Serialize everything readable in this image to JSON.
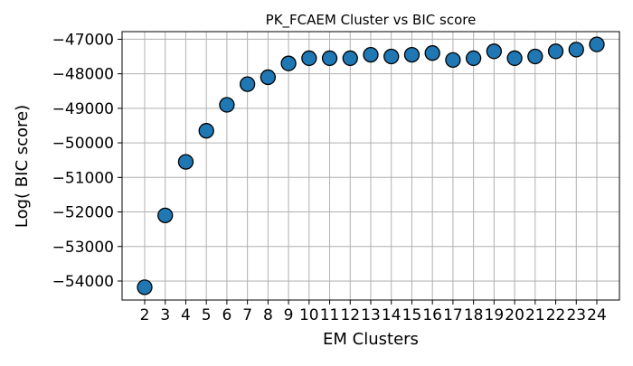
{
  "chart_data": {
    "type": "scatter",
    "title": "PK_FCAEM Cluster vs BIC score",
    "xlabel": "EM Clusters",
    "ylabel": "Log( BIC score)",
    "x": [
      2,
      3,
      4,
      5,
      6,
      7,
      8,
      9,
      10,
      11,
      12,
      13,
      14,
      15,
      16,
      17,
      18,
      19,
      20,
      21,
      22,
      23,
      24
    ],
    "y": [
      -54180,
      -52100,
      -50550,
      -49650,
      -48900,
      -48300,
      -48100,
      -47700,
      -47550,
      -47550,
      -47550,
      -47450,
      -47500,
      -47450,
      -47400,
      -47600,
      -47550,
      -47350,
      -47550,
      -47500,
      -47350,
      -47300,
      -47150
    ],
    "xticks": [
      "2",
      "3",
      "4",
      "5",
      "6",
      "7",
      "8",
      "9",
      "10",
      "11",
      "12",
      "13",
      "14",
      "15",
      "16",
      "17",
      "18",
      "19",
      "20",
      "21",
      "22",
      "23",
      "24"
    ],
    "yticks": [
      -54000,
      -53000,
      -52000,
      -51000,
      -50000,
      -49000,
      -48000,
      -47000
    ],
    "ytick_labels": [
      "−54000",
      "−53000",
      "−52000",
      "−51000",
      "−50000",
      "−49000",
      "−48000",
      "−47000"
    ],
    "xlim": [
      0.9,
      25.1
    ],
    "ylim": [
      -54550,
      -46780
    ],
    "grid": true,
    "marker_color": "#1f77b4",
    "marker_edge_color": "#000000",
    "grid_color": "#b0b0b0"
  }
}
